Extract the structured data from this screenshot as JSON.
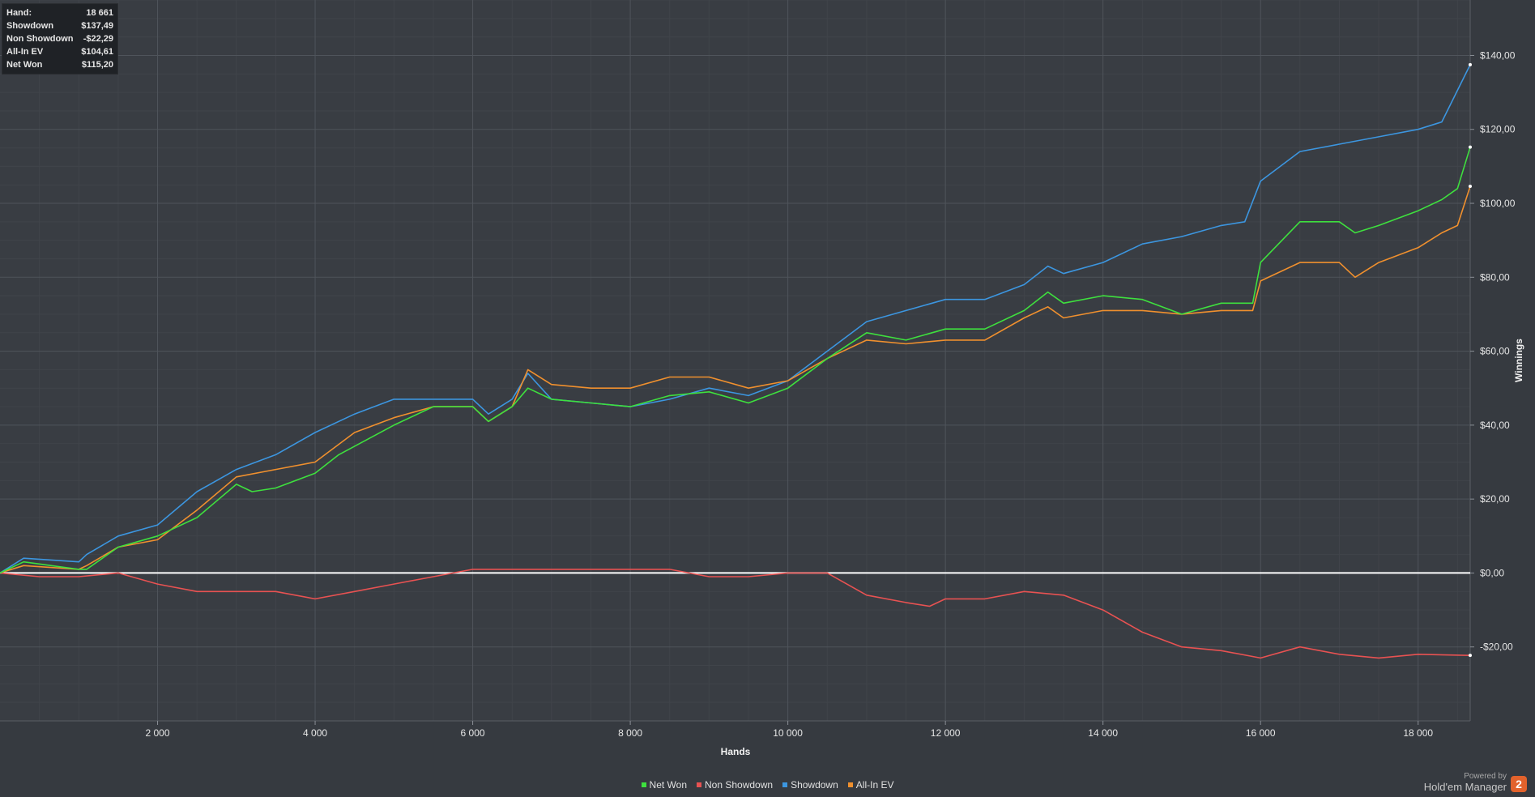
{
  "stats": [
    {
      "label": "Hand:",
      "value": "18 661"
    },
    {
      "label": "Showdown",
      "value": "$137,49"
    },
    {
      "label": "Non Showdown",
      "value": "-$22,29"
    },
    {
      "label": "All-In EV",
      "value": "$104,61"
    },
    {
      "label": "Net Won",
      "value": "$115,20"
    }
  ],
  "brand": {
    "powered": "Powered by",
    "name": "Hold'em Manager",
    "logo": "2"
  },
  "chart_data": {
    "type": "line",
    "xlabel": "Hands",
    "ylabel": "Winnings",
    "xlim": [
      0,
      18661
    ],
    "ylim": [
      -40,
      155
    ],
    "x_ticks": [
      2000,
      4000,
      6000,
      8000,
      10000,
      12000,
      14000,
      16000,
      18000
    ],
    "x_tick_labels": [
      "2 000",
      "4 000",
      "6 000",
      "8 000",
      "10 000",
      "12 000",
      "14 000",
      "16 000",
      "18 000"
    ],
    "y_ticks": [
      -20,
      0,
      20,
      40,
      60,
      80,
      100,
      120,
      140
    ],
    "y_tick_labels": [
      "-$20,00",
      "$0,00",
      "$20,00",
      "$40,00",
      "$60,00",
      "$80,00",
      "$100,00",
      "$120,00",
      "$140,00"
    ],
    "grid": true,
    "legend_position": "bottom-center",
    "series": [
      {
        "name": "Net Won",
        "color": "#3ee03e",
        "x": [
          0,
          300,
          1000,
          1100,
          1500,
          2000,
          2500,
          3000,
          3200,
          3500,
          4000,
          4300,
          5000,
          5500,
          6000,
          6200,
          6500,
          6700,
          7000,
          7500,
          8000,
          8500,
          9000,
          9500,
          10000,
          10500,
          11000,
          11500,
          12000,
          12500,
          13000,
          13300,
          13500,
          14000,
          14500,
          15000,
          15500,
          15900,
          16000,
          16500,
          17000,
          17200,
          17500,
          18000,
          18300,
          18500,
          18661
        ],
        "y": [
          0,
          3,
          1,
          1,
          7,
          10,
          15,
          24,
          22,
          23,
          27,
          32,
          40,
          45,
          45,
          41,
          45,
          50,
          47,
          46,
          45,
          48,
          49,
          46,
          50,
          58,
          65,
          63,
          66,
          66,
          71,
          76,
          73,
          75,
          74,
          70,
          73,
          73,
          84,
          95,
          95,
          92,
          94,
          98,
          101,
          104,
          115.2
        ]
      },
      {
        "name": "Non Showdown",
        "color": "#e85252",
        "x": [
          0,
          500,
          1000,
          1500,
          2000,
          2500,
          3000,
          3500,
          4000,
          4500,
          5000,
          5500,
          6000,
          6500,
          7000,
          7500,
          8000,
          8500,
          9000,
          9500,
          10000,
          10500,
          11000,
          11500,
          11800,
          12000,
          12500,
          13000,
          13500,
          14000,
          14500,
          15000,
          15500,
          16000,
          16500,
          17000,
          17500,
          18000,
          18661
        ],
        "y": [
          0,
          -1,
          -1,
          0,
          -3,
          -5,
          -5,
          -5,
          -7,
          -5,
          -3,
          -1,
          1,
          1,
          1,
          1,
          1,
          1,
          -1,
          -1,
          0,
          0,
          -6,
          -8,
          -9,
          -7,
          -7,
          -5,
          -6,
          -10,
          -16,
          -20,
          -21,
          -23,
          -20,
          -22,
          -23,
          -22,
          -22.29
        ]
      },
      {
        "name": "Showdown",
        "color": "#3c96e0",
        "x": [
          0,
          300,
          1000,
          1100,
          1500,
          2000,
          2500,
          3000,
          3500,
          4000,
          4500,
          5000,
          5500,
          6000,
          6200,
          6500,
          6700,
          7000,
          7500,
          8000,
          8500,
          9000,
          9500,
          10000,
          10500,
          11000,
          11500,
          12000,
          12500,
          13000,
          13300,
          13500,
          14000,
          14500,
          15000,
          15500,
          15800,
          16000,
          16500,
          17000,
          17500,
          18000,
          18300,
          18661
        ],
        "y": [
          0,
          4,
          3,
          5,
          10,
          13,
          22,
          28,
          32,
          38,
          43,
          47,
          47,
          47,
          43,
          47,
          54,
          47,
          46,
          45,
          47,
          50,
          48,
          52,
          60,
          68,
          71,
          74,
          74,
          78,
          83,
          81,
          84,
          89,
          91,
          94,
          95,
          106,
          114,
          116,
          118,
          120,
          122,
          137.49
        ]
      },
      {
        "name": "All-In EV",
        "color": "#f0902e",
        "x": [
          0,
          300,
          1000,
          1100,
          1500,
          2000,
          2500,
          3000,
          3500,
          4000,
          4500,
          5000,
          5500,
          6000,
          6200,
          6500,
          6700,
          7000,
          7500,
          8000,
          8500,
          9000,
          9500,
          10000,
          10500,
          11000,
          11500,
          12000,
          12500,
          13000,
          13300,
          13500,
          14000,
          14500,
          15000,
          15500,
          15900,
          16000,
          16500,
          17000,
          17200,
          17500,
          18000,
          18300,
          18500,
          18661
        ],
        "y": [
          0,
          2,
          1,
          2,
          7,
          9,
          17,
          26,
          28,
          30,
          38,
          42,
          45,
          45,
          41,
          45,
          55,
          51,
          50,
          50,
          53,
          53,
          50,
          52,
          58,
          63,
          62,
          63,
          63,
          69,
          72,
          69,
          71,
          71,
          70,
          71,
          71,
          79,
          84,
          84,
          80,
          84,
          88,
          92,
          94,
          104.61
        ]
      }
    ]
  }
}
